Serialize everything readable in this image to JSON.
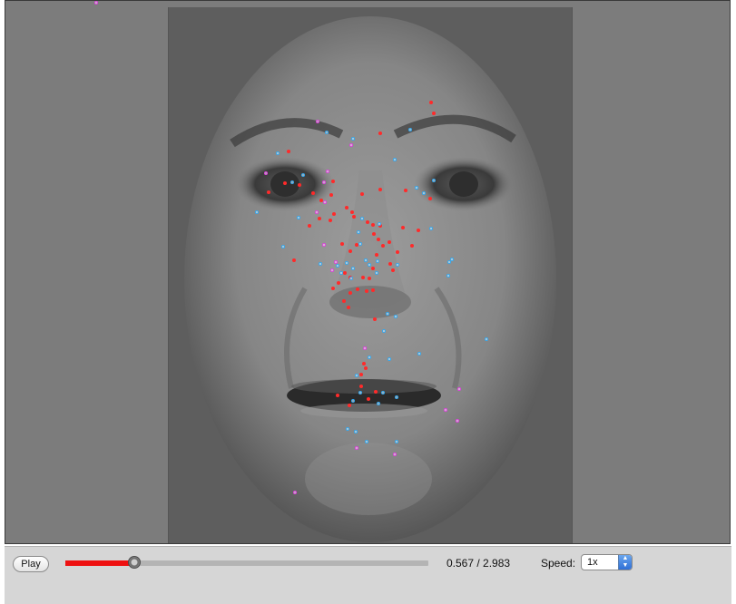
{
  "player": {
    "play_label": "Play",
    "progress_fraction": 0.19,
    "current_time": "0.567",
    "total_time": "2.983",
    "time_display": "0.567 / 2.983",
    "speed_label": "Speed:",
    "speed_value": "1x"
  },
  "colors": {
    "progress": "#ee1111",
    "gaze_red": "#ff2a2a",
    "gaze_blue": "#35a9f0",
    "gaze_magenta": "#e043e0",
    "stage_bg": "#7c7c7c"
  },
  "icons": {
    "speed_select_arrows": "up-down-arrows-icon",
    "timeline_knob": "slider-knob-icon"
  }
}
